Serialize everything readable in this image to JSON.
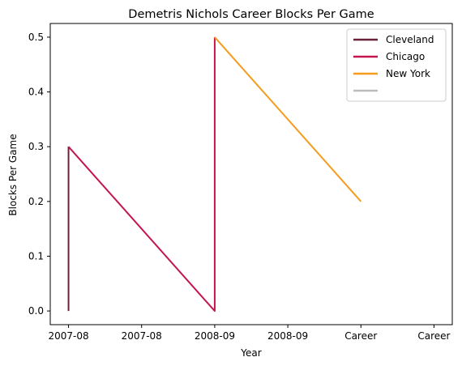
{
  "chart_data": {
    "type": "line",
    "title": "Demetris Nichols Career Blocks Per Game",
    "xlabel": "Year",
    "ylabel": "Blocks Per Game",
    "x_positions": [
      0,
      1,
      2,
      3,
      4,
      5
    ],
    "xtick_labels": [
      "2007-08",
      "2007-08",
      "2008-09",
      "2008-09",
      "Career",
      "Career"
    ],
    "yticks": [
      0.0,
      0.1,
      0.2,
      0.3,
      0.4,
      0.5
    ],
    "ytick_labels": [
      "0.0",
      "0.1",
      "0.2",
      "0.3",
      "0.4",
      "0.5"
    ],
    "xlim": [
      -0.25,
      5.25
    ],
    "ylim": [
      -0.025,
      0.525
    ],
    "grid": false,
    "legend_position": "top-right",
    "series": [
      {
        "name": "Cleveland",
        "color": "#6b2139",
        "points": [
          [
            0,
            0.0
          ],
          [
            0,
            0.3
          ]
        ]
      },
      {
        "name": "Chicago",
        "color": "#c4154c",
        "points": [
          [
            0,
            0.3
          ],
          [
            2,
            0.0
          ],
          [
            2,
            0.5
          ]
        ]
      },
      {
        "name": "New York",
        "color": "#f59c1e",
        "points": [
          [
            2,
            0.5
          ],
          [
            4,
            0.2
          ]
        ]
      },
      {
        "name": "",
        "color": "#bbbbbb",
        "points": []
      }
    ]
  }
}
